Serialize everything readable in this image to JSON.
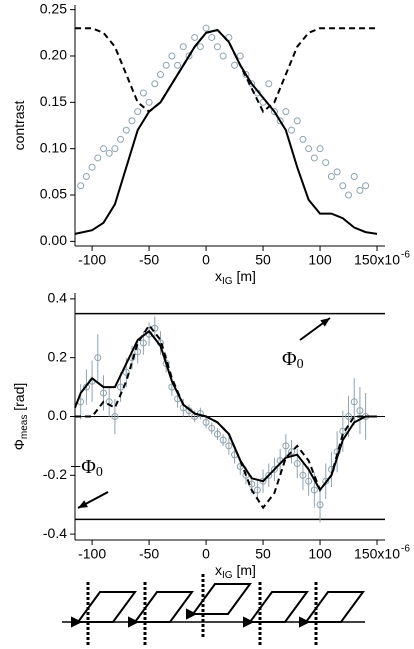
{
  "chart_data": [
    {
      "type": "scatter",
      "ylabel": "contrast",
      "xlabel": "x",
      "xlabel_sub": "IG",
      "xlabel_rest": " [m]",
      "x_exponent": "-6",
      "xlim": [
        -115,
        157
      ],
      "ylim": [
        -0.005,
        0.255
      ],
      "xticks": [
        -100,
        -50,
        0,
        50,
        100,
        {
          "value": 150,
          "label": "150x10"
        }
      ],
      "yticks": [
        {
          "value": 0,
          "label": "0.00"
        },
        0.05,
        {
          "value": 0.1,
          "label": "0.10"
        },
        0.15,
        {
          "value": 0.2,
          "label": "0.20"
        },
        0.25
      ],
      "series": [
        {
          "style": "markers",
          "color": "#8fa3ad",
          "x": [
            -110,
            -105,
            -100,
            -95,
            -90,
            -85,
            -80,
            -75,
            -70,
            -65,
            -60,
            -55,
            -50,
            -45,
            -40,
            -35,
            -30,
            -25,
            -20,
            -15,
            -10,
            -5,
            0,
            5,
            10,
            15,
            20,
            25,
            30,
            35,
            40,
            45,
            50,
            55,
            60,
            65,
            70,
            75,
            80,
            85,
            90,
            95,
            100,
            105,
            110,
            115,
            120,
            125,
            130,
            135,
            140
          ],
          "values": [
            0.06,
            0.07,
            0.08,
            0.09,
            0.1,
            0.095,
            0.1,
            0.11,
            0.12,
            0.13,
            0.14,
            0.16,
            0.15,
            0.17,
            0.18,
            0.19,
            0.2,
            0.19,
            0.21,
            0.2,
            0.22,
            0.21,
            0.23,
            0.22,
            0.21,
            0.2,
            0.22,
            0.19,
            0.2,
            0.18,
            0.17,
            0.16,
            0.15,
            0.17,
            0.14,
            0.13,
            0.14,
            0.12,
            0.13,
            0.11,
            0.1,
            0.09,
            0.1,
            0.085,
            0.07,
            0.075,
            0.06,
            0.05,
            0.07,
            0.055,
            0.06
          ]
        },
        {
          "style": "solid",
          "color": "#000000",
          "x": [
            -115,
            -100,
            -90,
            -80,
            -70,
            -60,
            -50,
            -40,
            -30,
            -20,
            -10,
            0,
            10,
            20,
            30,
            40,
            50,
            60,
            70,
            80,
            90,
            100,
            110,
            120,
            130,
            140,
            150
          ],
          "values": [
            0.008,
            0.012,
            0.02,
            0.04,
            0.08,
            0.12,
            0.14,
            0.15,
            0.17,
            0.19,
            0.21,
            0.225,
            0.228,
            0.215,
            0.19,
            0.17,
            0.155,
            0.14,
            0.12,
            0.08,
            0.045,
            0.03,
            0.03,
            0.025,
            0.015,
            0.01,
            0.008
          ]
        },
        {
          "style": "dashed",
          "color": "#000000",
          "x": [
            -115,
            -100,
            -90,
            -80,
            -70,
            -60,
            -50,
            -40,
            -30,
            -20,
            -10,
            0,
            10,
            20,
            30,
            40,
            50,
            60,
            70,
            80,
            90,
            100,
            110,
            120,
            130,
            140,
            150
          ],
          "values": [
            0.23,
            0.23,
            0.225,
            0.21,
            0.18,
            0.15,
            0.14,
            0.15,
            0.17,
            0.19,
            0.21,
            0.225,
            0.228,
            0.215,
            0.19,
            0.165,
            0.14,
            0.15,
            0.18,
            0.21,
            0.225,
            0.23,
            0.23,
            0.23,
            0.23,
            0.23,
            0.23
          ]
        }
      ]
    },
    {
      "type": "scatter",
      "ylabel": "Φ",
      "ylabel_sub": "meas",
      "ylabel_rest": " [rad]",
      "xlabel": "x",
      "xlabel_sub": "IG",
      "xlabel_rest": " [m]",
      "x_exponent": "-6",
      "xlim": [
        -115,
        157
      ],
      "ylim": [
        -0.42,
        0.42
      ],
      "xticks": [
        -100,
        -50,
        0,
        50,
        100,
        {
          "value": 150,
          "label": "150x10"
        }
      ],
      "yticks": [
        -0.4,
        -0.2,
        {
          "value": 0,
          "label": "0.0"
        },
        0.2,
        0.4
      ],
      "hlines": [
        0.35,
        0,
        -0.35
      ],
      "annotations": [
        {
          "text": "Φ",
          "sub": "0"
        },
        {
          "text": "−Φ",
          "sub": "0"
        }
      ],
      "series": [
        {
          "style": "markers",
          "color": "#8fa3ad",
          "x": [
            -110,
            -105,
            -100,
            -95,
            -90,
            -85,
            -80,
            -75,
            -70,
            -65,
            -60,
            -55,
            -50,
            -45,
            -40,
            -35,
            -30,
            -25,
            -20,
            -15,
            -10,
            -5,
            0,
            5,
            10,
            15,
            20,
            25,
            30,
            35,
            40,
            45,
            50,
            55,
            60,
            65,
            70,
            75,
            80,
            85,
            90,
            95,
            100,
            105,
            110,
            115,
            120,
            125,
            130,
            135,
            140
          ],
          "values": [
            0.05,
            0.1,
            0.12,
            0.2,
            0.08,
            0.05,
            0.0,
            0.1,
            0.15,
            0.2,
            0.22,
            0.25,
            0.28,
            0.3,
            0.25,
            0.18,
            0.1,
            0.06,
            0.03,
            0.02,
            0.0,
            0.01,
            -0.02,
            -0.04,
            -0.06,
            -0.08,
            -0.1,
            -0.13,
            -0.17,
            -0.2,
            -0.23,
            -0.25,
            -0.22,
            -0.2,
            -0.18,
            -0.15,
            -0.1,
            -0.12,
            -0.16,
            -0.2,
            -0.22,
            -0.25,
            -0.3,
            -0.22,
            -0.18,
            -0.12,
            -0.05,
            0.0,
            0.05,
            0.02,
            0.0
          ],
          "errors": [
            0.06,
            0.06,
            0.07,
            0.08,
            0.06,
            0.05,
            0.06,
            0.05,
            0.05,
            0.04,
            0.04,
            0.04,
            0.04,
            0.04,
            0.04,
            0.03,
            0.03,
            0.03,
            0.03,
            0.02,
            0.02,
            0.02,
            0.02,
            0.02,
            0.02,
            0.02,
            0.03,
            0.03,
            0.03,
            0.03,
            0.03,
            0.03,
            0.04,
            0.04,
            0.04,
            0.04,
            0.04,
            0.04,
            0.05,
            0.05,
            0.05,
            0.06,
            0.06,
            0.06,
            0.06,
            0.07,
            0.07,
            0.07,
            0.08,
            0.08,
            0.08
          ]
        },
        {
          "style": "solid",
          "color": "#000000",
          "x": [
            -115,
            -110,
            -100,
            -90,
            -80,
            -70,
            -60,
            -50,
            -40,
            -30,
            -20,
            -10,
            0,
            10,
            20,
            30,
            40,
            50,
            60,
            70,
            80,
            90,
            100,
            110,
            120,
            130,
            140,
            150
          ],
          "values": [
            0.03,
            0.08,
            0.13,
            0.1,
            0.1,
            0.18,
            0.26,
            0.29,
            0.24,
            0.12,
            0.04,
            0.01,
            0,
            -0.02,
            -0.06,
            -0.15,
            -0.21,
            -0.22,
            -0.18,
            -0.14,
            -0.13,
            -0.18,
            -0.25,
            -0.2,
            -0.08,
            -0.02,
            0,
            0
          ]
        },
        {
          "style": "dashed",
          "color": "#000000",
          "x": [
            -115,
            -100,
            -90,
            -80,
            -70,
            -60,
            -50,
            -40,
            -30,
            -20,
            -10,
            0,
            10,
            20,
            30,
            40,
            50,
            60,
            70,
            80,
            90,
            100,
            110,
            120,
            130,
            140,
            150
          ],
          "values": [
            0,
            0,
            0.05,
            0.03,
            0.12,
            0.25,
            0.31,
            0.26,
            0.13,
            0.04,
            0.01,
            0,
            -0.02,
            -0.06,
            -0.15,
            -0.25,
            -0.31,
            -0.26,
            -0.14,
            -0.1,
            -0.15,
            -0.25,
            -0.2,
            -0.06,
            0,
            0,
            0
          ]
        }
      ]
    }
  ]
}
